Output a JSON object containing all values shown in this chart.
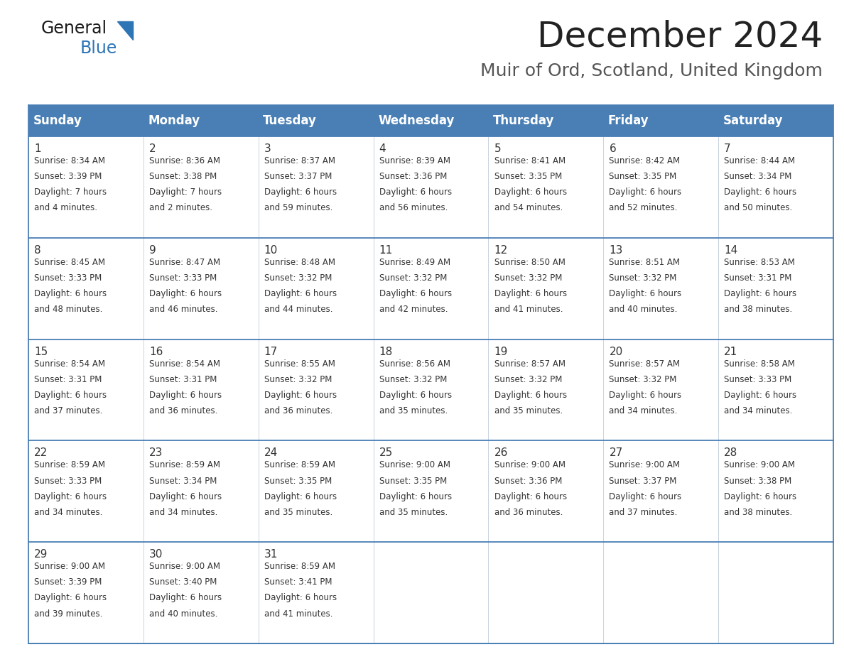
{
  "title": "December 2024",
  "subtitle": "Muir of Ord, Scotland, United Kingdom",
  "header_bg_color": "#4a7fb5",
  "header_text_color": "#ffffff",
  "row_bg": "#ffffff",
  "days_of_week": [
    "Sunday",
    "Monday",
    "Tuesday",
    "Wednesday",
    "Thursday",
    "Friday",
    "Saturday"
  ],
  "weeks": [
    [
      {
        "day": 1,
        "sunrise": "8:34 AM",
        "sunset": "3:39 PM",
        "daylight": "7 hours",
        "daylight2": "and 4 minutes."
      },
      {
        "day": 2,
        "sunrise": "8:36 AM",
        "sunset": "3:38 PM",
        "daylight": "7 hours",
        "daylight2": "and 2 minutes."
      },
      {
        "day": 3,
        "sunrise": "8:37 AM",
        "sunset": "3:37 PM",
        "daylight": "6 hours",
        "daylight2": "and 59 minutes."
      },
      {
        "day": 4,
        "sunrise": "8:39 AM",
        "sunset": "3:36 PM",
        "daylight": "6 hours",
        "daylight2": "and 56 minutes."
      },
      {
        "day": 5,
        "sunrise": "8:41 AM",
        "sunset": "3:35 PM",
        "daylight": "6 hours",
        "daylight2": "and 54 minutes."
      },
      {
        "day": 6,
        "sunrise": "8:42 AM",
        "sunset": "3:35 PM",
        "daylight": "6 hours",
        "daylight2": "and 52 minutes."
      },
      {
        "day": 7,
        "sunrise": "8:44 AM",
        "sunset": "3:34 PM",
        "daylight": "6 hours",
        "daylight2": "and 50 minutes."
      }
    ],
    [
      {
        "day": 8,
        "sunrise": "8:45 AM",
        "sunset": "3:33 PM",
        "daylight": "6 hours",
        "daylight2": "and 48 minutes."
      },
      {
        "day": 9,
        "sunrise": "8:47 AM",
        "sunset": "3:33 PM",
        "daylight": "6 hours",
        "daylight2": "and 46 minutes."
      },
      {
        "day": 10,
        "sunrise": "8:48 AM",
        "sunset": "3:32 PM",
        "daylight": "6 hours",
        "daylight2": "and 44 minutes."
      },
      {
        "day": 11,
        "sunrise": "8:49 AM",
        "sunset": "3:32 PM",
        "daylight": "6 hours",
        "daylight2": "and 42 minutes."
      },
      {
        "day": 12,
        "sunrise": "8:50 AM",
        "sunset": "3:32 PM",
        "daylight": "6 hours",
        "daylight2": "and 41 minutes."
      },
      {
        "day": 13,
        "sunrise": "8:51 AM",
        "sunset": "3:32 PM",
        "daylight": "6 hours",
        "daylight2": "and 40 minutes."
      },
      {
        "day": 14,
        "sunrise": "8:53 AM",
        "sunset": "3:31 PM",
        "daylight": "6 hours",
        "daylight2": "and 38 minutes."
      }
    ],
    [
      {
        "day": 15,
        "sunrise": "8:54 AM",
        "sunset": "3:31 PM",
        "daylight": "6 hours",
        "daylight2": "and 37 minutes."
      },
      {
        "day": 16,
        "sunrise": "8:54 AM",
        "sunset": "3:31 PM",
        "daylight": "6 hours",
        "daylight2": "and 36 minutes."
      },
      {
        "day": 17,
        "sunrise": "8:55 AM",
        "sunset": "3:32 PM",
        "daylight": "6 hours",
        "daylight2": "and 36 minutes."
      },
      {
        "day": 18,
        "sunrise": "8:56 AM",
        "sunset": "3:32 PM",
        "daylight": "6 hours",
        "daylight2": "and 35 minutes."
      },
      {
        "day": 19,
        "sunrise": "8:57 AM",
        "sunset": "3:32 PM",
        "daylight": "6 hours",
        "daylight2": "and 35 minutes."
      },
      {
        "day": 20,
        "sunrise": "8:57 AM",
        "sunset": "3:32 PM",
        "daylight": "6 hours",
        "daylight2": "and 34 minutes."
      },
      {
        "day": 21,
        "sunrise": "8:58 AM",
        "sunset": "3:33 PM",
        "daylight": "6 hours",
        "daylight2": "and 34 minutes."
      }
    ],
    [
      {
        "day": 22,
        "sunrise": "8:59 AM",
        "sunset": "3:33 PM",
        "daylight": "6 hours",
        "daylight2": "and 34 minutes."
      },
      {
        "day": 23,
        "sunrise": "8:59 AM",
        "sunset": "3:34 PM",
        "daylight": "6 hours",
        "daylight2": "and 34 minutes."
      },
      {
        "day": 24,
        "sunrise": "8:59 AM",
        "sunset": "3:35 PM",
        "daylight": "6 hours",
        "daylight2": "and 35 minutes."
      },
      {
        "day": 25,
        "sunrise": "9:00 AM",
        "sunset": "3:35 PM",
        "daylight": "6 hours",
        "daylight2": "and 35 minutes."
      },
      {
        "day": 26,
        "sunrise": "9:00 AM",
        "sunset": "3:36 PM",
        "daylight": "6 hours",
        "daylight2": "and 36 minutes."
      },
      {
        "day": 27,
        "sunrise": "9:00 AM",
        "sunset": "3:37 PM",
        "daylight": "6 hours",
        "daylight2": "and 37 minutes."
      },
      {
        "day": 28,
        "sunrise": "9:00 AM",
        "sunset": "3:38 PM",
        "daylight": "6 hours",
        "daylight2": "and 38 minutes."
      }
    ],
    [
      {
        "day": 29,
        "sunrise": "9:00 AM",
        "sunset": "3:39 PM",
        "daylight": "6 hours",
        "daylight2": "and 39 minutes."
      },
      {
        "day": 30,
        "sunrise": "9:00 AM",
        "sunset": "3:40 PM",
        "daylight": "6 hours",
        "daylight2": "and 40 minutes."
      },
      {
        "day": 31,
        "sunrise": "8:59 AM",
        "sunset": "3:41 PM",
        "daylight": "6 hours",
        "daylight2": "and 41 minutes."
      },
      null,
      null,
      null,
      null
    ]
  ],
  "logo_triangle_color": "#2e75b6",
  "title_color": "#222222",
  "subtitle_color": "#555555",
  "cell_border_color": "#4a7fb5",
  "cell_text_color": "#333333",
  "day_num_color": "#333333",
  "title_fontsize": 36,
  "subtitle_fontsize": 18,
  "header_fontsize": 12,
  "day_num_fontsize": 11,
  "cell_fontsize": 8.5
}
